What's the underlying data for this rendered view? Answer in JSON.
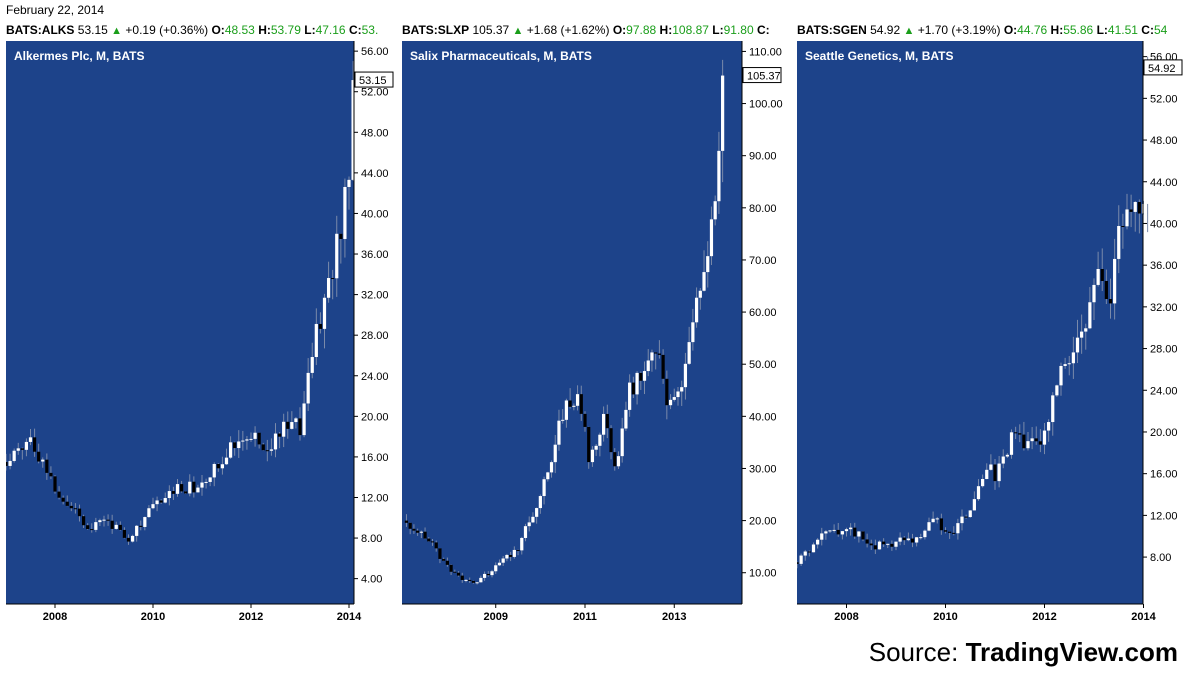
{
  "header": {
    "date": "February 22, 2014"
  },
  "source": {
    "label": "Source:",
    "brand": "TradingView.com"
  },
  "colors": {
    "plot_bg": "#1d438a",
    "axis_bg": "#ffffff",
    "up_candle": "#ffffff",
    "down_candle": "#000000",
    "change_up": "#1a9e1a"
  },
  "charts": [
    {
      "ticker": {
        "symbol": "BATS:ALKS",
        "price": "53.15",
        "change": "+0.19 (+0.36%)",
        "o_label": "O:",
        "o": "48.53",
        "h_label": "H:",
        "h": "53.79",
        "l_label": "L:",
        "l": "47.16",
        "c_label": "C:",
        "c": "53."
      },
      "title": "Alkermes Plc, M, BATS",
      "last_price_label": "53.15"
    },
    {
      "ticker": {
        "symbol": "BATS:SLXP",
        "price": "105.37",
        "change": "+1.68 (+1.62%)",
        "o_label": "O:",
        "o": "97.88",
        "h_label": "H:",
        "h": "108.87",
        "l_label": "L:",
        "l": "91.80",
        "c_label": "C:",
        "c": ""
      },
      "title": "Salix Pharmaceuticals, M, BATS",
      "last_price_label": "105.37"
    },
    {
      "ticker": {
        "symbol": "BATS:SGEN",
        "price": "54.92",
        "change": "+1.70 (+3.19%)",
        "o_label": "O:",
        "o": "44.76",
        "h_label": "H:",
        "h": "55.86",
        "l_label": "L:",
        "l": "41.51",
        "c_label": "C:",
        "c": "54"
      },
      "title": "Seattle Genetics, M, BATS",
      "last_price_label": "54.92"
    }
  ],
  "chart_data": [
    {
      "type": "candlestick",
      "title": "Alkermes Plc, M, BATS",
      "interval": "monthly",
      "x_tick_labels": [
        "2008",
        "2010",
        "2012",
        "2014"
      ],
      "x_tick_years": [
        2008,
        2010,
        2012,
        2014
      ],
      "x_range": [
        2007.0,
        2015.0
      ],
      "y_tick_labels": [
        "4.00",
        "8.00",
        "12.00",
        "16.00",
        "20.00",
        "24.00",
        "28.00",
        "32.00",
        "36.00",
        "40.00",
        "44.00",
        "48.00",
        "52.00",
        "56.00"
      ],
      "ylim": [
        1.5,
        57.0
      ],
      "last_price": 53.15,
      "anchors": [
        [
          2007.0,
          15.5
        ],
        [
          2007.5,
          18
        ],
        [
          2008.0,
          13
        ],
        [
          2008.7,
          9
        ],
        [
          2009.0,
          10
        ],
        [
          2009.5,
          8
        ],
        [
          2010.0,
          11
        ],
        [
          2010.5,
          13
        ],
        [
          2011.0,
          13
        ],
        [
          2011.3,
          15
        ],
        [
          2011.6,
          17.5
        ],
        [
          2012.0,
          18.5
        ],
        [
          2012.3,
          16.5
        ],
        [
          2012.6,
          18.5
        ],
        [
          2013.0,
          19
        ],
        [
          2013.3,
          28
        ],
        [
          2013.6,
          33
        ],
        [
          2013.8,
          38
        ],
        [
          2014.0,
          45
        ],
        [
          2014.15,
          53.15
        ]
      ]
    },
    {
      "type": "candlestick",
      "title": "Salix Pharmaceuticals, M, BATS",
      "interval": "monthly",
      "x_tick_labels": [
        "2009",
        "2011",
        "2013"
      ],
      "x_tick_years": [
        2009,
        2011,
        2013
      ],
      "x_range": [
        2006.9,
        2015.1
      ],
      "y_tick_labels": [
        "10.00",
        "20.00",
        "30.00",
        "40.00",
        "50.00",
        "60.00",
        "70.00",
        "80.00",
        "90.00",
        "100.00",
        "110.00"
      ],
      "ylim": [
        4.0,
        112.0
      ],
      "last_price": 105.37,
      "anchors": [
        [
          2007.0,
          20
        ],
        [
          2007.6,
          15
        ],
        [
          2008.0,
          10
        ],
        [
          2008.5,
          8
        ],
        [
          2009.0,
          11
        ],
        [
          2009.5,
          15
        ],
        [
          2010.0,
          25
        ],
        [
          2010.5,
          40
        ],
        [
          2010.8,
          45
        ],
        [
          2011.1,
          32
        ],
        [
          2011.4,
          40
        ],
        [
          2011.7,
          30
        ],
        [
          2012.0,
          45
        ],
        [
          2012.3,
          50
        ],
        [
          2012.6,
          52
        ],
        [
          2012.9,
          42
        ],
        [
          2013.1,
          43
        ],
        [
          2013.4,
          55
        ],
        [
          2013.6,
          67
        ],
        [
          2013.8,
          70
        ],
        [
          2014.0,
          95
        ],
        [
          2014.15,
          105.37
        ]
      ]
    },
    {
      "type": "candlestick",
      "title": "Seattle Genetics, M, BATS",
      "interval": "monthly",
      "x_tick_labels": [
        "2008",
        "2010",
        "2012",
        "2014"
      ],
      "x_tick_years": [
        2008,
        2010,
        2012,
        2014
      ],
      "x_range": [
        2007.0,
        2015.0
      ],
      "y_tick_labels": [
        "8.00",
        "12.00",
        "16.00",
        "20.00",
        "24.00",
        "28.00",
        "32.00",
        "36.00",
        "40.00",
        "44.00",
        "48.00",
        "52.00",
        "56.00"
      ],
      "ylim": [
        3.5,
        57.5
      ],
      "last_price": 54.92,
      "anchors": [
        [
          2007.0,
          7.5
        ],
        [
          2007.5,
          10
        ],
        [
          2008.0,
          11
        ],
        [
          2008.5,
          9
        ],
        [
          2009.0,
          9.5
        ],
        [
          2009.5,
          9.5
        ],
        [
          2009.8,
          12
        ],
        [
          2010.0,
          10
        ],
        [
          2010.5,
          12
        ],
        [
          2010.8,
          17
        ],
        [
          2011.0,
          16
        ],
        [
          2011.4,
          20
        ],
        [
          2011.7,
          19
        ],
        [
          2012.0,
          20
        ],
        [
          2012.3,
          25
        ],
        [
          2012.6,
          27
        ],
        [
          2012.9,
          32
        ],
        [
          2013.1,
          36
        ],
        [
          2013.3,
          33
        ],
        [
          2013.5,
          38
        ],
        [
          2013.7,
          41
        ],
        [
          2013.9,
          40
        ],
        [
          2014.0,
          44
        ],
        [
          2014.15,
          54.92
        ]
      ]
    }
  ]
}
